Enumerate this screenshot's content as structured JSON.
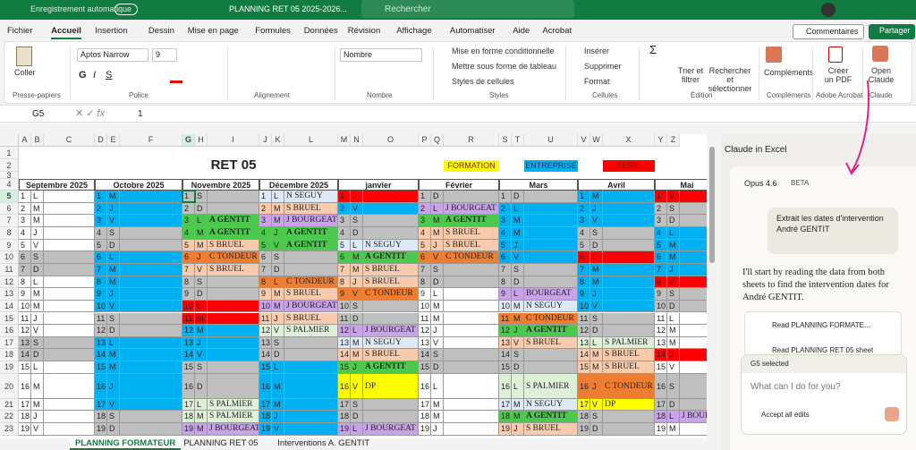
{
  "titlebar": {
    "autosave": "Enregistrement automatique",
    "file": "PLANNING RET 05 2025-2026...",
    "search": "Rechercher"
  },
  "menu": [
    "Fichier",
    "Accueil",
    "Insertion",
    "Dessin",
    "Mise en page",
    "Formules",
    "Données",
    "Révision",
    "Affichage",
    "Automatiser",
    "Aide",
    "Acrobat"
  ],
  "buttons": {
    "comments": "Commentaires",
    "share": "Partager"
  },
  "ribbon": {
    "paste": "Coller",
    "clipboard": "Presse-papiers",
    "font": "Aptos Narrow",
    "size": "9",
    "font_group": "Police",
    "align_group": "Alignement",
    "number_format": "Nombre",
    "number_group": "Nombre",
    "cond": "Mise en forme conditionnelle",
    "table": "Mettre sous forme de tableau",
    "cellstyles": "Styles de cellules",
    "styles_group": "Styles",
    "insert": "Insérer",
    "delete": "Supprimer",
    "format": "Format",
    "cells_group": "Cellules",
    "sort": "Trier et filtrer",
    "find": "Rechercher et sélectionner",
    "edit_group": "Édition",
    "addins": "Compléments",
    "addins_group": "Compléments",
    "pdf": "Créer un PDF",
    "acrobat_group": "Adobe Acrobat",
    "open_claude": "Open Claude",
    "claude_group": "Claude"
  },
  "formula": {
    "cell": "G5",
    "value": "1"
  },
  "sheet": {
    "columns": [
      "A",
      "B",
      "C",
      "D",
      "E",
      "F",
      "G",
      "H",
      "I",
      "J",
      "K",
      "L",
      "M",
      "N",
      "O",
      "P",
      "Q",
      "R",
      "S",
      "T",
      "U",
      "V",
      "W",
      "X",
      "Y",
      "Z"
    ],
    "rows": [
      1,
      2,
      3,
      4,
      5,
      6,
      7,
      8,
      9,
      10,
      11,
      12,
      13,
      14,
      15,
      16,
      17,
      18,
      19,
      20,
      21,
      22,
      23
    ],
    "title": "RET 05",
    "legend": [
      {
        "label": "FORMATION",
        "color": "#ffff00"
      },
      {
        "label": "ENTREPRISE",
        "color": "#00b0f0"
      },
      {
        "label": "FERIE",
        "color": "#ff0000"
      }
    ],
    "palette": {
      "w": "#ffffff",
      "g": "#bfbfbf",
      "b": "#00b0f0",
      "r": "#ff0000",
      "y": "#ffff00",
      "G": "#4cc94c",
      "o": "#ed7d31",
      "p": "#f8cbad",
      "v": "#c9a3e8",
      "n": "#dde9f7",
      "l": "#dff0d8"
    },
    "blocks": [
      {
        "month": "Septembre 2025",
        "rows": [
          [
            1,
            "L",
            null,
            "w"
          ],
          [
            2,
            "M",
            null,
            "w"
          ],
          [
            3,
            "M",
            null,
            "w"
          ],
          [
            4,
            "J",
            null,
            "w"
          ],
          [
            5,
            "V",
            null,
            "w"
          ],
          [
            6,
            "S",
            null,
            "g"
          ],
          [
            7,
            "D",
            null,
            "g"
          ],
          [
            8,
            "L",
            null,
            "w"
          ],
          [
            9,
            "M",
            null,
            "w"
          ],
          [
            10,
            "M",
            null,
            "w"
          ],
          [
            11,
            "J",
            null,
            "w"
          ],
          [
            12,
            "V",
            null,
            "w"
          ],
          [
            13,
            "S",
            null,
            "g"
          ],
          [
            14,
            "D",
            null,
            "g"
          ],
          [
            15,
            "L",
            null,
            "w"
          ],
          [
            16,
            "M",
            null,
            "w"
          ],
          [
            17,
            "M",
            null,
            "w"
          ],
          [
            18,
            "J",
            null,
            "w"
          ],
          [
            19,
            "V",
            null,
            "w"
          ]
        ]
      },
      {
        "month": "Octobre 2025",
        "rows": [
          [
            1,
            "M",
            null,
            "b"
          ],
          [
            2,
            "J",
            null,
            "b"
          ],
          [
            3,
            "V",
            null,
            "b"
          ],
          [
            4,
            "S",
            null,
            "g"
          ],
          [
            5,
            "D",
            null,
            "g"
          ],
          [
            6,
            "L",
            null,
            "b"
          ],
          [
            7,
            "M",
            null,
            "b"
          ],
          [
            8,
            "M",
            null,
            "b"
          ],
          [
            9,
            "J",
            null,
            "b"
          ],
          [
            10,
            "V",
            null,
            "b"
          ],
          [
            11,
            "S",
            null,
            "g"
          ],
          [
            12,
            "D",
            null,
            "g"
          ],
          [
            13,
            "L",
            null,
            "b"
          ],
          [
            14,
            "M",
            null,
            "b"
          ],
          [
            15,
            "M",
            null,
            "b"
          ],
          [
            16,
            "J",
            null,
            "b"
          ],
          [
            17,
            "V",
            null,
            "b"
          ],
          [
            18,
            "S",
            null,
            "g"
          ],
          [
            19,
            "D",
            null,
            "g"
          ]
        ]
      },
      {
        "month": "Novembre 2025",
        "rows": [
          [
            1,
            "S",
            null,
            "g"
          ],
          [
            2,
            "D",
            null,
            "g"
          ],
          [
            3,
            "L",
            "A GENTIT",
            "G"
          ],
          [
            4,
            "M",
            "A GENTIT",
            "G"
          ],
          [
            5,
            "M",
            "S BRUEL",
            "p"
          ],
          [
            6,
            "J",
            "C TONDEUR",
            "o"
          ],
          [
            7,
            "V",
            "S BRUEL",
            "p"
          ],
          [
            8,
            "S",
            null,
            "g"
          ],
          [
            9,
            "D",
            null,
            "g"
          ],
          [
            10,
            "L",
            null,
            "r"
          ],
          [
            11,
            "M",
            null,
            "r"
          ],
          [
            12,
            "M",
            null,
            "b"
          ],
          [
            13,
            "J",
            null,
            "b"
          ],
          [
            14,
            "V",
            null,
            "b"
          ],
          [
            15,
            "S",
            null,
            "g"
          ],
          [
            16,
            "D",
            null,
            "g"
          ],
          [
            17,
            "L",
            "S PALMIER",
            "l"
          ],
          [
            18,
            "M",
            "S PALMIER",
            "l"
          ],
          [
            19,
            "M",
            "J BOURGEAT",
            "v"
          ]
        ]
      },
      {
        "month": "Décembre 2025",
        "rows": [
          [
            1,
            "L",
            "N SEGUY",
            "n"
          ],
          [
            2,
            "M",
            "S BRUEL",
            "p"
          ],
          [
            3,
            "M",
            "J BOURGEAT",
            "v"
          ],
          [
            4,
            "J",
            "A GENTIT",
            "G"
          ],
          [
            5,
            "V",
            "A GENTIT",
            "G"
          ],
          [
            6,
            "S",
            null,
            "g"
          ],
          [
            7,
            "D",
            null,
            "g"
          ],
          [
            8,
            "L",
            "C TONDEUR",
            "o"
          ],
          [
            9,
            "M",
            "S BRUEL",
            "p"
          ],
          [
            10,
            "M",
            "J BOURGEAT",
            "v"
          ],
          [
            11,
            "J",
            "S BRUEL",
            "p"
          ],
          [
            12,
            "V",
            "S PALMIER",
            "l"
          ],
          [
            13,
            "S",
            null,
            "g"
          ],
          [
            14,
            "D",
            null,
            "g"
          ],
          [
            15,
            "L",
            null,
            "b"
          ],
          [
            16,
            "M",
            null,
            "b"
          ],
          [
            17,
            "M",
            null,
            "b"
          ],
          [
            18,
            "J",
            null,
            "b"
          ],
          [
            19,
            "V",
            null,
            "b"
          ]
        ]
      },
      {
        "month": "janvier",
        "rows": [
          [
            1,
            "J",
            null,
            "r"
          ],
          [
            2,
            "V",
            null,
            "b"
          ],
          [
            3,
            "S",
            null,
            "g"
          ],
          [
            4,
            "D",
            null,
            "g"
          ],
          [
            5,
            "L",
            "N SEGUY",
            "n"
          ],
          [
            6,
            "M",
            "A GENTIT",
            "G"
          ],
          [
            7,
            "M",
            "S BRUEL",
            "p"
          ],
          [
            8,
            "J",
            "S BRUEL",
            "p"
          ],
          [
            9,
            "V",
            "C TONDEUR",
            "o"
          ],
          [
            10,
            "S",
            null,
            "g"
          ],
          [
            11,
            "D",
            null,
            "g"
          ],
          [
            12,
            "L",
            "J BOURGEAT",
            "v"
          ],
          [
            13,
            "M",
            "N SEGUY",
            "n"
          ],
          [
            14,
            "M",
            "S BRUEL",
            "p"
          ],
          [
            15,
            "J",
            "A GENTIT",
            "G"
          ],
          [
            16,
            "V",
            "DP",
            "y"
          ],
          [
            17,
            "S",
            null,
            "g"
          ],
          [
            18,
            "D",
            null,
            "g"
          ],
          [
            19,
            "L",
            "J BOURGEAT",
            "v"
          ]
        ]
      },
      {
        "month": "Février",
        "rows": [
          [
            1,
            "D",
            null,
            "g"
          ],
          [
            2,
            "L",
            "J BOURGEAT",
            "v"
          ],
          [
            3,
            "M",
            "A GENTIT",
            "G"
          ],
          [
            4,
            "M",
            "S BRUEL",
            "p"
          ],
          [
            5,
            "J",
            "S BRUEL",
            "p"
          ],
          [
            6,
            "V",
            "C TONDEUR",
            "o"
          ],
          [
            7,
            "S",
            null,
            "g"
          ],
          [
            8,
            "D",
            null,
            "g"
          ],
          [
            9,
            "L",
            null,
            "w"
          ],
          [
            10,
            "M",
            null,
            "w"
          ],
          [
            11,
            "M",
            null,
            "w"
          ],
          [
            12,
            "J",
            null,
            "w"
          ],
          [
            13,
            "V",
            null,
            "w"
          ],
          [
            14,
            "S",
            null,
            "g"
          ],
          [
            15,
            "D",
            null,
            "g"
          ],
          [
            16,
            "L",
            null,
            "w"
          ],
          [
            17,
            "M",
            null,
            "w"
          ],
          [
            18,
            "M",
            null,
            "w"
          ],
          [
            19,
            "J",
            null,
            "w"
          ]
        ]
      },
      {
        "month": "Mars",
        "rows": [
          [
            1,
            "D",
            null,
            "g"
          ],
          [
            2,
            "L",
            null,
            "b"
          ],
          [
            3,
            "M",
            null,
            "b"
          ],
          [
            4,
            "M",
            null,
            "b"
          ],
          [
            5,
            "J",
            null,
            "b"
          ],
          [
            6,
            "V",
            null,
            "b"
          ],
          [
            7,
            "S",
            null,
            "g"
          ],
          [
            8,
            "D",
            null,
            "g"
          ],
          [
            9,
            "L",
            "BOURGEAT",
            "v"
          ],
          [
            10,
            "M",
            "N SEGUY",
            "n"
          ],
          [
            11,
            "M",
            "C TONDEUR",
            "o"
          ],
          [
            12,
            "J",
            "A GENTIT",
            "G"
          ],
          [
            13,
            "V",
            "S BRUEL",
            "p"
          ],
          [
            14,
            "S",
            null,
            "g"
          ],
          [
            15,
            "D",
            null,
            "g"
          ],
          [
            16,
            "L",
            "S PALMIER",
            "l"
          ],
          [
            17,
            "M",
            "N SEGUY",
            "n"
          ],
          [
            18,
            "M",
            "A GENTIT",
            "G"
          ],
          [
            19,
            "J",
            "S BRUEL",
            "p"
          ]
        ]
      },
      {
        "month": "Avril",
        "rows": [
          [
            1,
            "M",
            null,
            "b"
          ],
          [
            2,
            "J",
            null,
            "b"
          ],
          [
            3,
            "V",
            null,
            "b"
          ],
          [
            4,
            "S",
            null,
            "g"
          ],
          [
            5,
            "D",
            null,
            "g"
          ],
          [
            6,
            "L",
            null,
            "r"
          ],
          [
            7,
            "M",
            null,
            "b"
          ],
          [
            8,
            "M",
            null,
            "b"
          ],
          [
            9,
            "J",
            null,
            "b"
          ],
          [
            10,
            "V",
            null,
            "b"
          ],
          [
            11,
            "S",
            null,
            "g"
          ],
          [
            12,
            "D",
            null,
            "g"
          ],
          [
            13,
            "L",
            "S PALMIER",
            "l"
          ],
          [
            14,
            "M",
            "S BRUEL",
            "p"
          ],
          [
            15,
            "M",
            "S BRUEL",
            "p"
          ],
          [
            16,
            "J",
            "C TONDEUR",
            "o"
          ],
          [
            17,
            "V",
            "DP",
            "y"
          ],
          [
            18,
            "S",
            null,
            "g"
          ],
          [
            19,
            "D",
            null,
            "g"
          ]
        ]
      },
      {
        "month": "Mai",
        "rows": [
          [
            1,
            "V",
            null,
            "r"
          ],
          [
            2,
            "S",
            null,
            "g"
          ],
          [
            3,
            "D",
            null,
            "g"
          ],
          [
            4,
            "L",
            null,
            "b"
          ],
          [
            5,
            "M",
            null,
            "b"
          ],
          [
            6,
            "M",
            null,
            "b"
          ],
          [
            7,
            "J",
            null,
            "b"
          ],
          [
            8,
            "V",
            null,
            "r"
          ],
          [
            9,
            "S",
            null,
            "g"
          ],
          [
            10,
            "D",
            null,
            "g"
          ],
          [
            11,
            "L",
            null,
            "w"
          ],
          [
            12,
            "M",
            null,
            "w"
          ],
          [
            13,
            "M",
            null,
            "w"
          ],
          [
            14,
            "J",
            null,
            "r"
          ],
          [
            15,
            "V",
            null,
            "w"
          ],
          [
            16,
            "S",
            null,
            "g"
          ],
          [
            17,
            "D",
            null,
            "g"
          ],
          [
            18,
            "L",
            "J BOURGEAT",
            "v"
          ],
          [
            19,
            "M",
            null,
            "w"
          ]
        ]
      }
    ]
  },
  "tabs": [
    "PLANNING FORMATEUR",
    "PLANNING RET 05",
    "Interventions A. GENTIT"
  ],
  "claude": {
    "title": "Claude in Excel",
    "model": "Opus 4.6",
    "badge": "BETA",
    "user_message": "Extrait les dates d'intervention André GENTIT",
    "reply": "I'll start by reading the data from both sheets to find the intervention dates for André GENTIT.",
    "steps": [
      "Read PLANNING FORMATE...",
      "Read PLANNING RET 05 sheet"
    ],
    "selection": "G5 selected",
    "placeholder": "What can I do for you?",
    "accept": "Accept all edits"
  }
}
